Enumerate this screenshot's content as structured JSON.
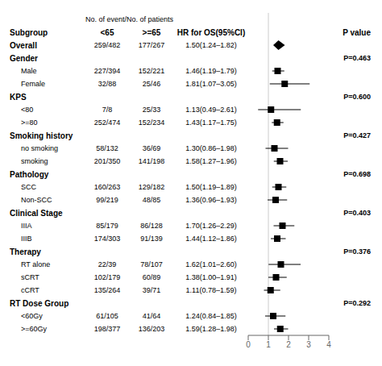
{
  "chart_data": {
    "type": "forest",
    "header": "No. of event/No. of patients",
    "column_headers": [
      "Subgroup",
      "<65",
      ">=65",
      "HR for OS(95%CI)",
      "P value"
    ],
    "categories": [
      "Overall",
      "Gender",
      "Male",
      "Female",
      "KPS",
      "<80",
      ">=80",
      "Smoking history",
      "no smoking",
      "smoking",
      "Pathology",
      "SCC",
      "Non-SCC",
      "Clinical Stage",
      "IIIA",
      "IIIB",
      "Therapy",
      "RT alone",
      "sCRT",
      "cCRT",
      "RT Dose Group",
      "<60Gy",
      ">=60Gy"
    ],
    "counts_lt65": [
      "259/482",
      null,
      "227/394",
      "32/88",
      null,
      "7/8",
      "252/474",
      null,
      "58/132",
      "201/350",
      null,
      "160/263",
      "99/219",
      null,
      "85/179",
      "174/303",
      null,
      "22/39",
      "102/179",
      "135/264",
      null,
      "61/105",
      "198/377"
    ],
    "counts_ge65": [
      "177/267",
      null,
      "152/221",
      "25/46",
      null,
      "25/33",
      "152/234",
      null,
      "36/69",
      "141/198",
      null,
      "129/182",
      "48/85",
      null,
      "86/128",
      "91/139",
      null,
      "78/107",
      "60/89",
      "39/71",
      null,
      "41/64",
      "136/203"
    ],
    "values": [
      1.5,
      null,
      1.46,
      1.81,
      null,
      1.13,
      1.43,
      null,
      1.3,
      1.58,
      null,
      1.5,
      1.36,
      null,
      1.7,
      1.44,
      null,
      1.62,
      1.38,
      1.11,
      null,
      1.24,
      1.59
    ],
    "ci_low": [
      1.24,
      null,
      1.19,
      1.07,
      null,
      0.49,
      1.17,
      null,
      0.86,
      1.27,
      null,
      1.19,
      0.96,
      null,
      1.26,
      1.12,
      null,
      1.01,
      1.0,
      0.78,
      null,
      0.84,
      1.28
    ],
    "ci_high": [
      1.82,
      null,
      1.79,
      3.05,
      null,
      2.61,
      1.75,
      null,
      1.98,
      1.96,
      null,
      1.89,
      1.93,
      null,
      2.29,
      1.86,
      null,
      2.6,
      1.91,
      1.59,
      null,
      1.85,
      1.98
    ],
    "value_labels": [
      "1.50(1.24–1.82)",
      null,
      "1.46(1.19–1.79)",
      "1.81(1.07–3.05)",
      null,
      "1.13(0.49–2.61)",
      "1.43(1.17–1.75)",
      null,
      "1.30(0.86–1.98)",
      "1.58(1.27–1.96)",
      null,
      "1.50(1.19–1.89)",
      "1.36(0.96–1.93)",
      null,
      "1.70(1.26–2.29)",
      "1.44(1.12–1.86)",
      null,
      "1.62(1.01–2.60)",
      "1.38(1.00–1.91)",
      "1.11(0.78–1.59)",
      null,
      "1.24(0.84–1.85)",
      "1.59(1.28–1.98)"
    ],
    "p_values": [
      null,
      "P=0.463",
      null,
      null,
      "P=0.600",
      null,
      null,
      "P=0.427",
      null,
      null,
      "P=0.698",
      null,
      null,
      "P=0.403",
      null,
      null,
      "P=0.376",
      null,
      null,
      null,
      "P=0.292",
      null,
      null
    ],
    "markers": [
      "diamond",
      null,
      "square",
      "square",
      null,
      "square",
      "square",
      null,
      "square",
      "square",
      null,
      "square",
      "square",
      null,
      "square",
      "square",
      null,
      "square",
      "square",
      "square",
      null,
      "square",
      "square"
    ],
    "reference_line": 1,
    "color": "#000000",
    "xlim": [
      0,
      4
    ],
    "xticks": [
      0,
      1,
      2,
      3,
      4
    ]
  }
}
